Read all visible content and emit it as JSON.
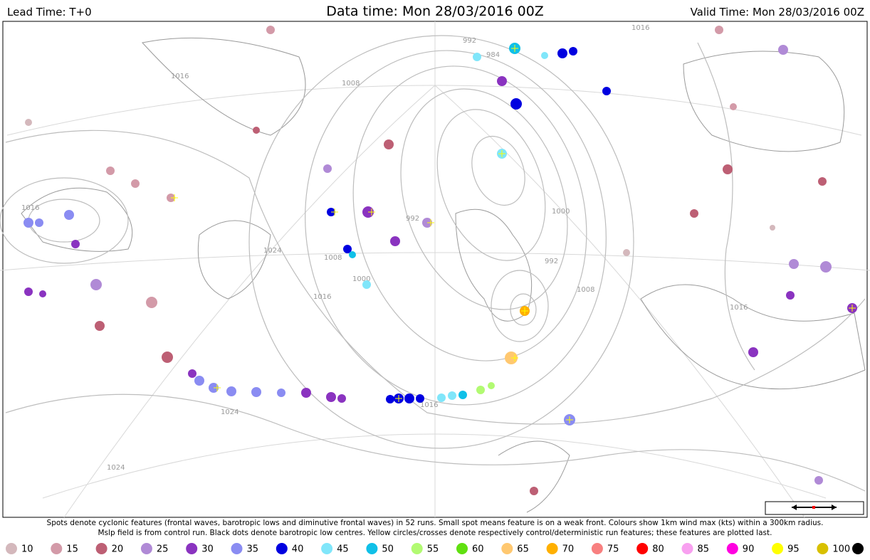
{
  "header": {
    "lead_time": "Lead Time: T+0",
    "data_time": "Data time:  Mon 28/03/2016 00Z",
    "valid_time": "Valid Time: Mon 28/03/2016 00Z"
  },
  "caption": [
    "Spots denote cyclonic features (frontal waves, barotropic lows and diminutive frontal waves) in 52 runs. Small spot means feature is on a weak front. Colours show 1km wind max (kts) within a 300km radius.",
    "Mslp field is from control run. Black dots denote barotropic low centres. Yellow circles/crosses denote respectively control/deterministic run features; these features are plotted last."
  ],
  "isobar_labels": [
    "1016",
    "1016",
    "1008",
    "1024",
    "1016",
    "1008",
    "1000",
    "992",
    "992",
    "984",
    "1000",
    "992",
    "1008",
    "1016",
    "1024",
    "1016",
    "1024",
    "1016"
  ],
  "legend": [
    {
      "label": 10,
      "color": "#d4b8bc"
    },
    {
      "label": 15,
      "color": "#d39aa8"
    },
    {
      "label": 20,
      "color": "#bd5f74"
    },
    {
      "label": 25,
      "color": "#b08ad6"
    },
    {
      "label": 30,
      "color": "#8a33c0"
    },
    {
      "label": 35,
      "color": "#8a8cf2"
    },
    {
      "label": 40,
      "color": "#0000e0"
    },
    {
      "label": 45,
      "color": "#80e6fa"
    },
    {
      "label": 50,
      "color": "#10c0e8"
    },
    {
      "label": 55,
      "color": "#b2fa72"
    },
    {
      "label": 60,
      "color": "#60e010"
    },
    {
      "label": 65,
      "color": "#ffc870"
    },
    {
      "label": 70,
      "color": "#ffb000"
    },
    {
      "label": 75,
      "color": "#f88080"
    },
    {
      "label": 80,
      "color": "#ff0000"
    },
    {
      "label": 85,
      "color": "#f8a0f0"
    },
    {
      "label": 90,
      "color": "#ff00e0"
    },
    {
      "label": 95,
      "color": "#ffff00"
    },
    {
      "label": 100,
      "color": "#d8c000"
    }
  ]
}
